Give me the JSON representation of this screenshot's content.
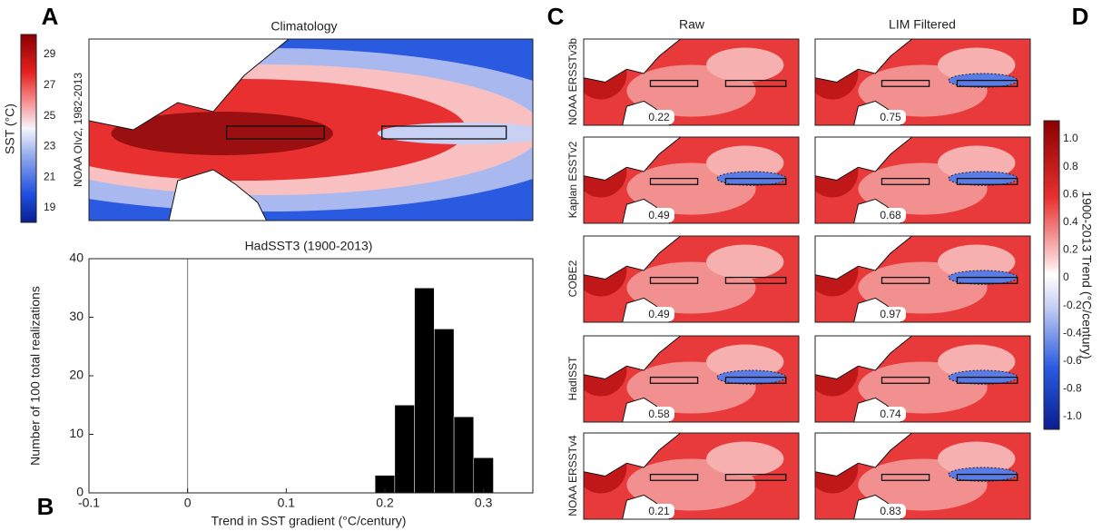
{
  "panel_labels": [
    "A",
    "B",
    "C",
    "D"
  ],
  "panel_a": {
    "title": "Climatology",
    "side_label": "NOAA OIv2, 1982-2013",
    "colorbar_label": "SST (°C)",
    "colorbar_ticks": [
      29,
      27,
      25,
      23,
      21,
      19
    ]
  },
  "chart_data": {
    "type": "histogram",
    "title": "HadSST3 (1900-2013)",
    "x_label": "Trend in SST gradient (°C/century)",
    "y_label": "Number of 100 total realizations",
    "bins": [
      0.19,
      0.21,
      0.23,
      0.25,
      0.27,
      0.29,
      0.31
    ],
    "values": [
      3,
      15,
      35,
      28,
      13,
      6
    ],
    "color": "#000000",
    "xlim": [
      -0.1,
      0.35
    ],
    "xticks": [
      -0.1,
      0,
      0.1,
      0.2,
      0.3
    ],
    "ylim": [
      0,
      40
    ],
    "yticks": [
      0,
      10,
      20,
      30,
      40
    ],
    "xline": 0
  },
  "panel_c": {
    "columns": [
      "Raw",
      "LIM Filtered"
    ],
    "rows": [
      {
        "label": "NOAA ERSSTv3b",
        "values": [
          0.22,
          0.75
        ]
      },
      {
        "label": "Kaplan ESSTv2",
        "values": [
          0.49,
          0.68
        ]
      },
      {
        "label": "COBE2",
        "values": [
          0.49,
          0.97
        ]
      },
      {
        "label": "HadISST",
        "values": [
          0.58,
          0.74
        ]
      },
      {
        "label": "NOAA ERSSTv4",
        "values": [
          0.21,
          0.83
        ]
      }
    ]
  },
  "panel_d": {
    "colorbar_label": "1900-2013 Trend (°C/century)",
    "colorbar_ticks": [
      {
        "value": 1,
        "label": "1.0"
      },
      0.8,
      0.6,
      0.4,
      0.2,
      0,
      -0.2,
      -0.4,
      -0.6,
      -0.8,
      {
        "value": -1,
        "label": "-1.0"
      }
    ]
  }
}
